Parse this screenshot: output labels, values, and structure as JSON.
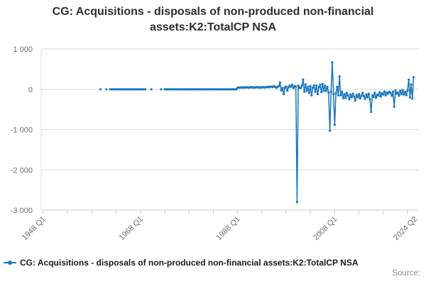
{
  "title": {
    "line1": "CG: Acquisitions - disposals of non-produced non-financial",
    "line2": "assets:K2:TotalCP NSA",
    "full": "CG: Acquisitions - disposals of non-produced non-financial assets:K2:TotalCP NSA"
  },
  "legend": {
    "label": "CG: Acquisitions - disposals of non-produced non-financial assets:K2:TotalCP NSA"
  },
  "source": {
    "label": "Source:"
  },
  "colors": {
    "line": "#1776bd",
    "grid": "#d8d8d8",
    "axis": "#c3cede",
    "tick_label": "#6f6f6f",
    "title_text": "#2e2e2e",
    "legend_text": "#1a1a1a",
    "source_text": "#8f8f8f",
    "background": "#ffffff"
  },
  "chart_data": {
    "type": "line",
    "title": "CG: Acquisitions - disposals of non-produced non-financial assets:K2:TotalCP NSA",
    "xlabel": "",
    "ylabel": "",
    "xlim": [
      1948,
      2024.5
    ],
    "ylim": [
      -3000,
      1000
    ],
    "grid": "horizontal",
    "legend_position": "bottom-left",
    "y_ticks": [
      {
        "value": 1000,
        "label": "1 000"
      },
      {
        "value": 0,
        "label": "0"
      },
      {
        "value": -1000,
        "label": "-1 000"
      },
      {
        "value": -2000,
        "label": "-2 000"
      },
      {
        "value": -3000,
        "label": "-3 000"
      }
    ],
    "x_minor_tick_years": [
      1948,
      1953,
      1958,
      1963,
      1968,
      1973,
      1978,
      1983,
      1988,
      1993,
      1998,
      2003,
      2008,
      2013,
      2018,
      2023
    ],
    "x_labels": [
      {
        "year": 1948,
        "label": "1948 Q1"
      },
      {
        "year": 1968,
        "label": "1968 Q1"
      },
      {
        "year": 1988,
        "label": "1988 Q1"
      },
      {
        "year": 2008,
        "label": "2008 Q1"
      },
      {
        "year": 2024.5,
        "label": "2024 Q2"
      }
    ],
    "series": [
      {
        "name": "CG: Acquisitions - disposals of non-produced non-financial assets:K2:TotalCP NSA",
        "color": "#1776bd",
        "marker": "circle",
        "unit": "quarterly values, approx. GBP millions",
        "zero_value_quarter_ranges": [
          [
            1959.75,
            1959.75
          ],
          [
            1961.0,
            1961.0
          ],
          [
            1961.75,
            1969.0
          ],
          [
            1970.25,
            1970.25
          ],
          [
            1972.25,
            1972.25
          ],
          [
            1973.0,
            1987.75
          ]
        ],
        "quarterly_points_from_1988": {
          "start_year": 1988,
          "step_years": 0.25,
          "values": [
            40,
            45,
            40,
            50,
            45,
            40,
            50,
            45,
            50,
            40,
            45,
            55,
            45,
            50,
            40,
            50,
            55,
            45,
            50,
            40,
            50,
            55,
            45,
            50,
            60,
            50,
            65,
            55,
            70,
            55,
            80,
            60,
            40,
            60,
            80,
            170,
            -30,
            30,
            -120,
            40,
            70,
            -30,
            50,
            90,
            60,
            110,
            30,
            80,
            60,
            -2800,
            90,
            40,
            30,
            90,
            240,
            -60,
            120,
            -40,
            60,
            -90,
            80,
            -150,
            40,
            100,
            -60,
            90,
            -120,
            50,
            110,
            -70,
            130,
            -40,
            90,
            -40,
            60,
            -80,
            -1030,
            -60,
            670,
            -120,
            -880,
            -100,
            60,
            -150,
            320,
            -150,
            -60,
            -220,
            -120,
            -220,
            -90,
            -160,
            -250,
            -130,
            -200,
            -110,
            -180,
            -280,
            -140,
            -200,
            -120,
            -230,
            -160,
            -90,
            -170,
            -240,
            -130,
            -200,
            -110,
            -250,
            -560,
            -150,
            -190,
            -90,
            -210,
            -130,
            -160,
            -70,
            -180,
            -100,
            -130,
            -50,
            -150,
            -80,
            -110,
            -60,
            -90,
            -160,
            -60,
            -430,
            -30,
            -110,
            -80,
            -160,
            -40,
            -120,
            -20,
            -130,
            -60,
            -150,
            -30,
            240,
            -200,
            120,
            -230,
            300
          ]
        }
      }
    ]
  }
}
